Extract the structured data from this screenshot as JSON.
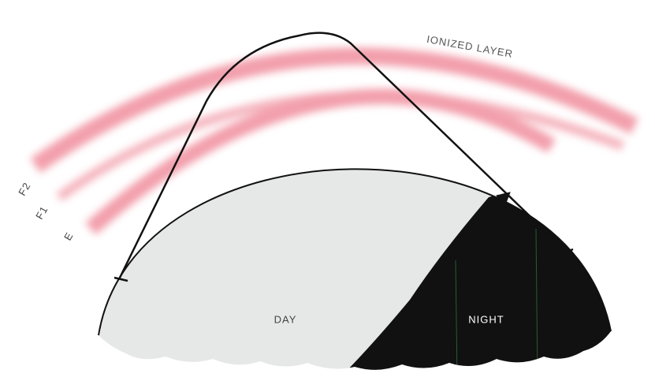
{
  "diagram": {
    "layer_label": "IONIZED LAYER",
    "layers": [
      {
        "label": "F2"
      },
      {
        "label": "F1"
      },
      {
        "label": "E"
      }
    ],
    "regions": [
      {
        "label": "DAY"
      },
      {
        "label": "NIGHT"
      }
    ]
  }
}
